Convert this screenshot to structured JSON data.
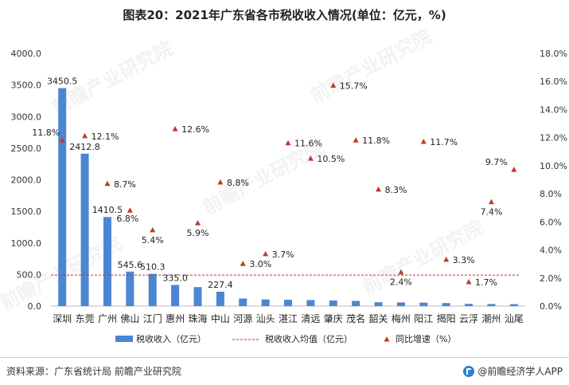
{
  "title": "图表20：2021年广东省各市税收收入情况(单位：亿元，%)",
  "footer": {
    "source": "资料来源：广东省统计局 前瞻产业研究院",
    "brand": "@前瞻经济学人APP"
  },
  "watermark": "前瞻产业研究院",
  "colors": {
    "bar": "#4a86d4",
    "avg_line": "#c0392b",
    "growth_marker": "#c0392b"
  },
  "chart_data": {
    "type": "bar",
    "categories": [
      "深圳",
      "东莞",
      "广州",
      "佛山",
      "江门",
      "惠州",
      "珠海",
      "中山",
      "河源",
      "汕头",
      "湛江",
      "清远",
      "肇庆",
      "茂名",
      "韶关",
      "梅州",
      "阳江",
      "揭阳",
      "云浮",
      "潮州",
      "汕尾"
    ],
    "series": [
      {
        "name": "税收收入（亿元）",
        "axis": "left",
        "type": "bar",
        "values": [
          3450.5,
          2412.8,
          1410.5,
          545.6,
          510.3,
          335.0,
          300.0,
          227.4,
          120.0,
          105.0,
          100.0,
          95.0,
          90.0,
          82.0,
          60.0,
          58.0,
          55.0,
          48.0,
          35.0,
          33.0,
          30.0
        ],
        "labels": [
          "3450.5",
          "2412.8",
          "1410.5",
          "545.6",
          "510.3",
          "335.0",
          "",
          "227.4",
          "",
          "",
          "",
          "",
          "",
          "",
          "",
          "",
          "",
          "",
          "",
          "",
          ""
        ]
      },
      {
        "name": "税收收入均值（亿元）",
        "axis": "left",
        "type": "line",
        "style": "dashed",
        "value": 490
      },
      {
        "name": "同比增速（%）",
        "axis": "right",
        "type": "scatter",
        "marker": "triangle",
        "values": [
          11.8,
          12.1,
          8.7,
          6.8,
          5.4,
          12.6,
          5.9,
          8.8,
          3.0,
          3.7,
          11.6,
          10.5,
          15.7,
          11.8,
          8.3,
          2.4,
          11.7,
          3.3,
          1.7,
          7.4,
          9.7
        ],
        "labels": [
          "11.8%",
          "12.1%",
          "8.7%",
          "6.8%",
          "5.4%",
          "12.6%",
          "5.9%",
          "8.8%",
          "3.0%",
          "3.7%",
          "11.6%",
          "10.5%",
          "15.7%",
          "11.8%",
          "8.3%",
          "2.4%",
          "11.7%",
          "3.3%",
          "1.7%",
          "7.4%",
          "9.7%"
        ]
      }
    ],
    "y_left": {
      "ylim": [
        0,
        4000
      ],
      "ticks": [
        "0.0",
        "500.0",
        "1000.0",
        "1500.0",
        "2000.0",
        "2500.0",
        "3000.0",
        "3500.0",
        "4000.0"
      ]
    },
    "y_right": {
      "ylim": [
        0,
        18
      ],
      "ticks": [
        "0.0%",
        "2.0%",
        "4.0%",
        "6.0%",
        "8.0%",
        "10.0%",
        "12.0%",
        "14.0%",
        "16.0%",
        "18.0%"
      ]
    },
    "legend": {
      "position": "bottom",
      "items": [
        "税收收入（亿元）",
        "税收收入均值（亿元）",
        "同比增速（%）"
      ]
    },
    "grid": false
  }
}
